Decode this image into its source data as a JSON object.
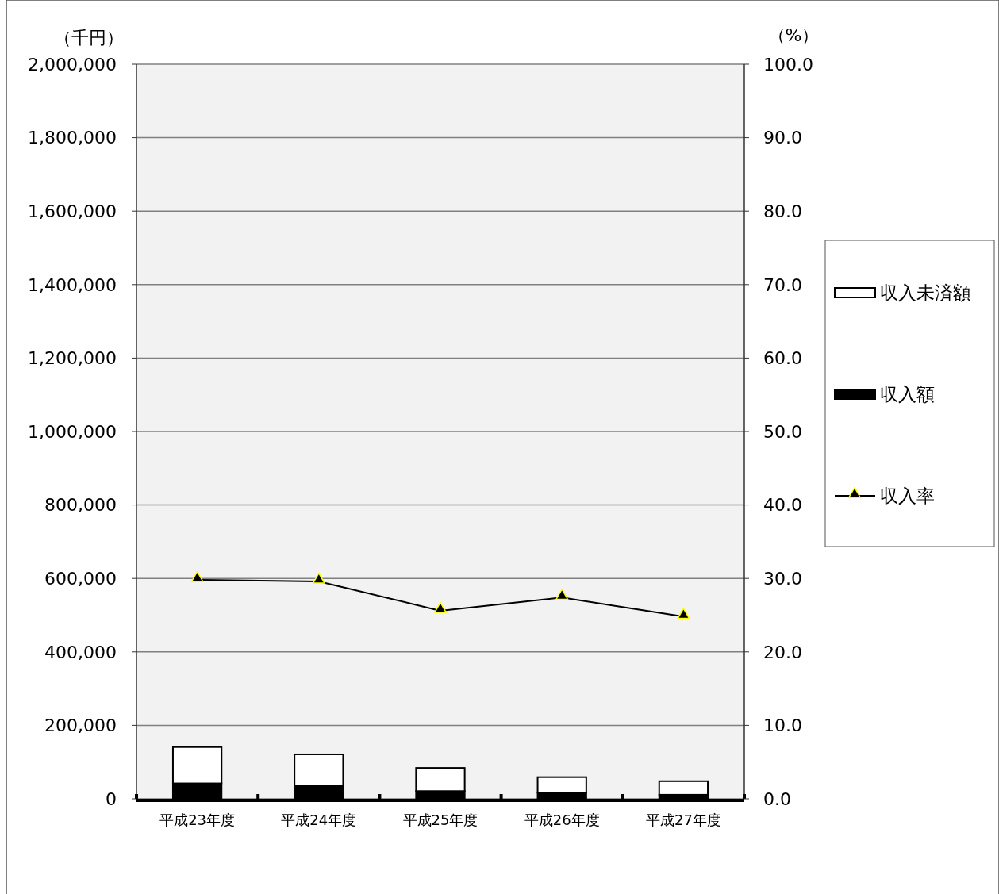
{
  "chart_data": {
    "type": "bar",
    "stacked": true,
    "ylabel": "（千円）",
    "y2label": "（%）",
    "categories": [
      "平成23年度",
      "平成24年度",
      "平成25年度",
      "平成26年度",
      "平成27年度"
    ],
    "series": [
      {
        "name": "収入額",
        "color": "#000000",
        "values": [
          42000,
          35000,
          21000,
          17000,
          11000
        ]
      },
      {
        "name": "収入未済額",
        "color": "#ffffff",
        "values": [
          99000,
          86000,
          63000,
          42000,
          37000
        ]
      },
      {
        "name": "収入率",
        "type": "line",
        "axis": "y2",
        "color": "#000000",
        "marker": "triangle",
        "values": [
          29.8,
          29.6,
          25.6,
          27.4,
          24.8
        ]
      }
    ],
    "ylim": [
      0,
      2000000
    ],
    "yticks": [
      {
        "value": 0,
        "label": "0"
      },
      {
        "value": 200000,
        "label": "200,000"
      },
      {
        "value": 400000,
        "label": "400,000"
      },
      {
        "value": 600000,
        "label": "600,000"
      },
      {
        "value": 800000,
        "label": "800,000"
      },
      {
        "value": 1000000,
        "label": "1,000,000"
      },
      {
        "value": 1200000,
        "label": "1,200,000"
      },
      {
        "value": 1400000,
        "label": "1,400,000"
      },
      {
        "value": 1600000,
        "label": "1,600,000"
      },
      {
        "value": 1800000,
        "label": "1,800,000"
      },
      {
        "value": 2000000,
        "label": "2,000,000"
      }
    ],
    "y2lim": [
      0,
      100
    ],
    "y2ticks": [
      {
        "value": 0,
        "label": "0.0"
      },
      {
        "value": 10,
        "label": "10.0"
      },
      {
        "value": 20,
        "label": "20.0"
      },
      {
        "value": 30,
        "label": "30.0"
      },
      {
        "value": 40,
        "label": "40.0"
      },
      {
        "value": 50,
        "label": "50.0"
      },
      {
        "value": 60,
        "label": "60.0"
      },
      {
        "value": 70,
        "label": "70.0"
      },
      {
        "value": 80,
        "label": "80.0"
      },
      {
        "value": 90,
        "label": "90.0"
      },
      {
        "value": 100,
        "label": "100.0"
      }
    ],
    "grid": "y",
    "legend": "right"
  }
}
